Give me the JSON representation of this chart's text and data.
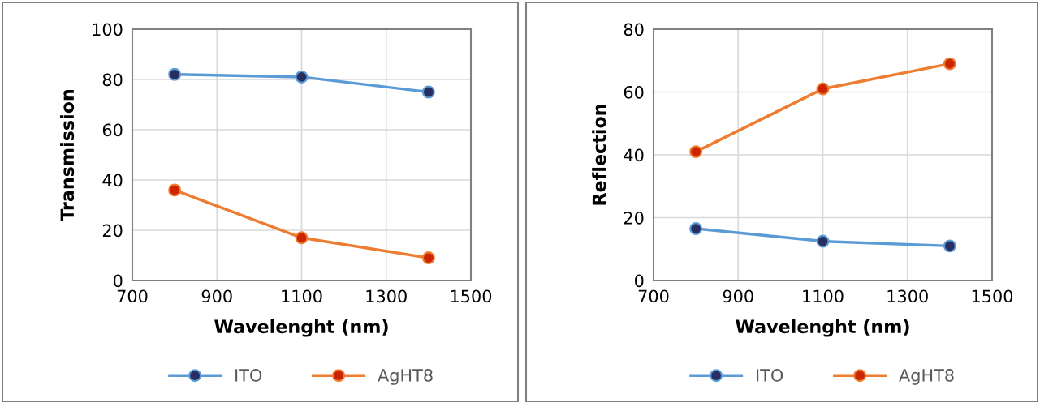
{
  "chart_data": [
    {
      "type": "line",
      "xlabel": "Wavelenght (nm)",
      "ylabel": "Transmission",
      "x": [
        800,
        1100,
        1400
      ],
      "xlim": [
        700,
        1500
      ],
      "xticks": [
        700,
        900,
        1100,
        1300,
        1500
      ],
      "ylim": [
        0,
        100
      ],
      "yticks": [
        0,
        20,
        40,
        60,
        80,
        100
      ],
      "grid": true,
      "legend": "bottom",
      "marker": "circle",
      "line_style": "solid",
      "series": [
        {
          "name": "ITO",
          "color": "#5b9bd5",
          "values": [
            82,
            81,
            75
          ]
        },
        {
          "name": "AgHT8",
          "color": "#ed7d31",
          "values": [
            36,
            17,
            9
          ]
        }
      ]
    },
    {
      "type": "line",
      "xlabel": "Wavelenght (nm)",
      "ylabel": "Reflection",
      "x": [
        800,
        1100,
        1400
      ],
      "xlim": [
        700,
        1500
      ],
      "xticks": [
        700,
        900,
        1100,
        1300,
        1500
      ],
      "ylim": [
        0,
        80
      ],
      "yticks": [
        0,
        20,
        40,
        60,
        80
      ],
      "grid": true,
      "legend": "bottom",
      "marker": "circle",
      "line_style": "solid",
      "series": [
        {
          "name": "ITO",
          "color": "#5b9bd5",
          "values": [
            16.5,
            12.5,
            11
          ]
        },
        {
          "name": "AgHT8",
          "color": "#ed7d31",
          "values": [
            41,
            61,
            69
          ]
        }
      ]
    }
  ]
}
